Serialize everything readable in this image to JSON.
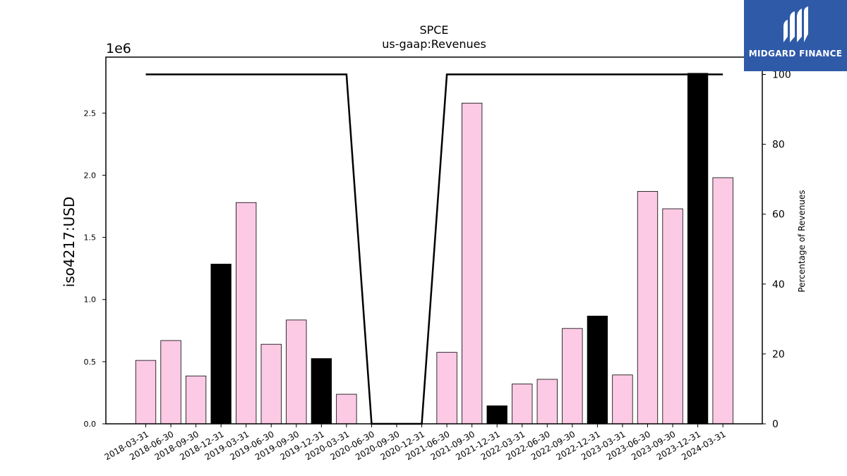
{
  "chart_data": {
    "type": "bar",
    "title": "SPCE",
    "subtitle": "us-gaap:Revenues",
    "ylabel": "iso4217:USD",
    "y2label": "Percentage of Revenues",
    "offset_text": "1e6",
    "categories": [
      "2018-03-31",
      "2018-06-30",
      "2018-09-30",
      "2018-12-31",
      "2019-03-31",
      "2019-06-30",
      "2019-09-30",
      "2019-12-31",
      "2020-03-31",
      "2020-06-30",
      "2020-09-30",
      "2020-12-31",
      "2021-06-30",
      "2021-09-30",
      "2021-12-31",
      "2022-03-31",
      "2022-06-30",
      "2022-09-30",
      "2022-12-31",
      "2023-03-31",
      "2023-06-30",
      "2023-09-30",
      "2023-12-31",
      "2024-03-31"
    ],
    "series": [
      {
        "values": [
          510000,
          670000,
          385000,
          1285000,
          1780000,
          640000,
          835000,
          525000,
          238000,
          0,
          0,
          0,
          575000,
          2580000,
          145000,
          320000,
          358000,
          767000,
          867000,
          393000,
          1870000,
          1730000,
          2820000,
          1980000
        ],
        "colors": [
          "#fccae4",
          "#fccae4",
          "#fccae4",
          "#000000",
          "#fccae4",
          "#fccae4",
          "#fccae4",
          "#000000",
          "#fccae4",
          "#fccae4",
          "#fccae4",
          "#fccae4",
          "#fccae4",
          "#fccae4",
          "#000000",
          "#fccae4",
          "#fccae4",
          "#fccae4",
          "#000000",
          "#fccae4",
          "#fccae4",
          "#fccae4",
          "#000000",
          "#fccae4"
        ]
      },
      {
        "type": "line",
        "axis": "right",
        "values": [
          100,
          100,
          100,
          100,
          100,
          100,
          100,
          100,
          100,
          0,
          0,
          0,
          100,
          100,
          100,
          100,
          100,
          100,
          100,
          100,
          100,
          100,
          100,
          100
        ],
        "color": "#000000"
      }
    ],
    "ylim": [
      0,
      2950000
    ],
    "y2lim": [
      0,
      100.0
    ],
    "yticks": [
      0,
      500000,
      1000000,
      1500000,
      2000000,
      2500000
    ],
    "ytick_labels": [
      "0.0",
      "0.5",
      "1.0",
      "1.5",
      "2.0",
      "2.5"
    ],
    "y2ticks": [
      0,
      20,
      40,
      60,
      80,
      100
    ],
    "y2tick_labels": [
      "0",
      "20",
      "40",
      "60",
      "80",
      "100"
    ],
    "grid": false
  },
  "logo": {
    "text": "MIDGARD FINANCE",
    "background": "#2f5aa8"
  }
}
